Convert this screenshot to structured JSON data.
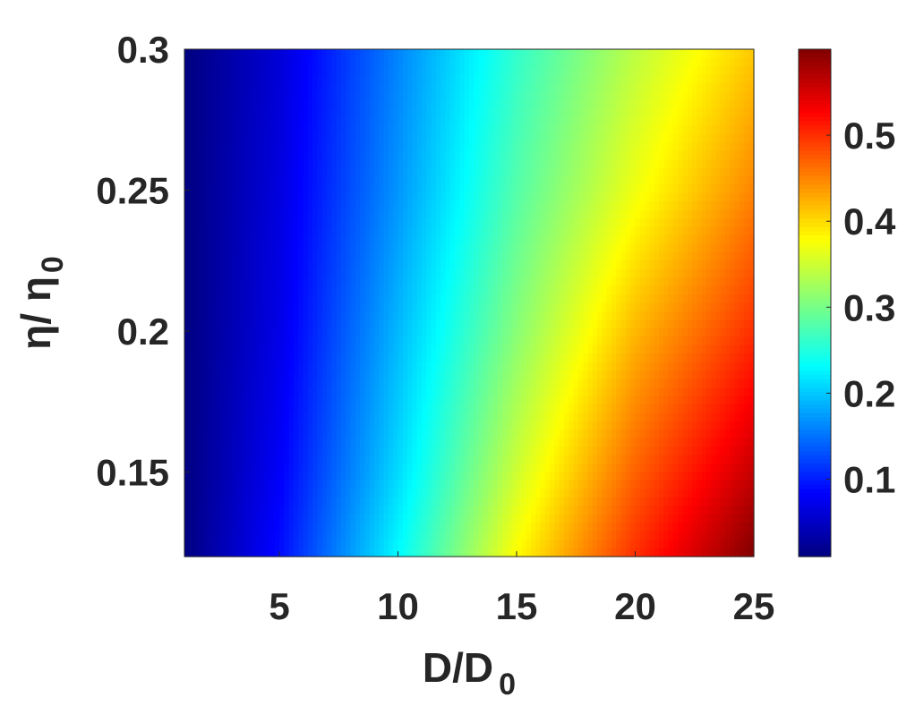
{
  "chart_data": {
    "type": "heatmap",
    "title": "",
    "xlabel": {
      "base": "D/D",
      "subscript": "0"
    },
    "ylabel": {
      "base": "η/ η",
      "subscript": "0"
    },
    "xlim": [
      1,
      25
    ],
    "ylim": [
      0.12,
      0.3
    ],
    "clim": [
      0.01,
      0.6
    ],
    "colormap": "jet",
    "grid": false,
    "x_ticks": [
      5,
      10,
      15,
      20,
      25
    ],
    "x_tick_labels": [
      "5",
      "10",
      "15",
      "20",
      "25"
    ],
    "y_ticks": [
      0.15,
      0.2,
      0.25,
      0.3
    ],
    "y_tick_labels": [
      "0.15",
      "0.2",
      "0.25",
      "0.3"
    ],
    "colorbar": {
      "ticks": [
        0.1,
        0.2,
        0.3,
        0.4,
        0.5
      ],
      "tick_labels": [
        "0.1",
        "0.2",
        "0.3",
        "0.4",
        "0.5"
      ]
    },
    "x": [
      1,
      5,
      10,
      15,
      20,
      25
    ],
    "y": [
      0.12,
      0.15,
      0.2,
      0.25,
      0.3
    ],
    "z": [
      [
        0.01,
        0.09,
        0.23,
        0.38,
        0.5,
        0.6
      ],
      [
        0.01,
        0.08,
        0.21,
        0.35,
        0.47,
        0.56
      ],
      [
        0.01,
        0.07,
        0.19,
        0.31,
        0.42,
        0.5
      ],
      [
        0.01,
        0.065,
        0.17,
        0.28,
        0.37,
        0.45
      ],
      [
        0.01,
        0.06,
        0.16,
        0.26,
        0.34,
        0.41
      ]
    ]
  }
}
